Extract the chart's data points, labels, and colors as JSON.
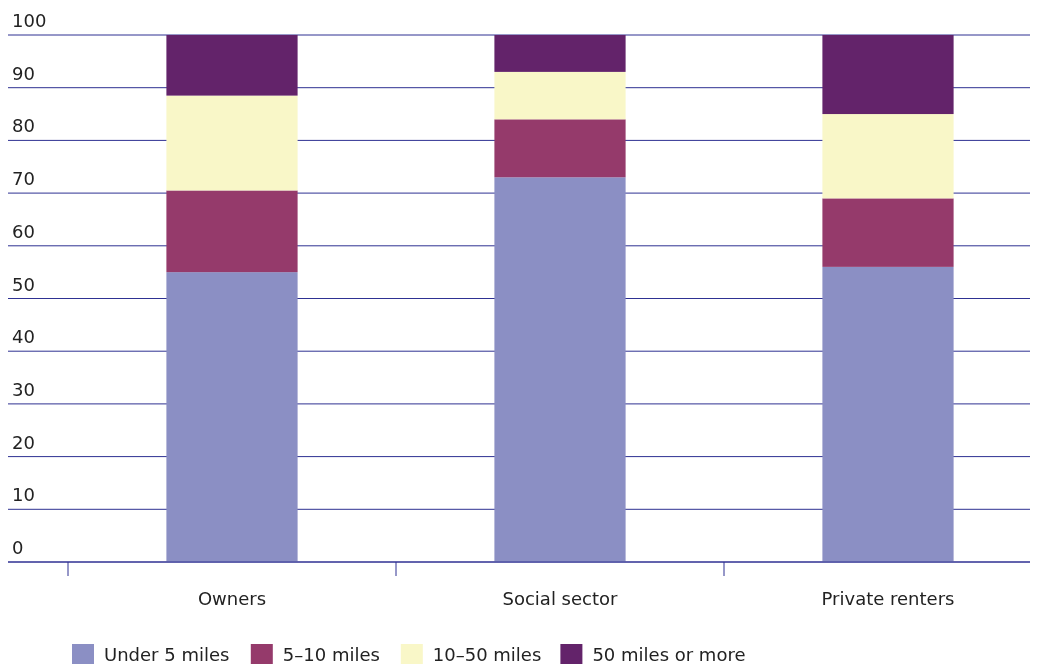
{
  "chart_data": {
    "type": "bar",
    "stacked": true,
    "categories": [
      "Owners",
      "Social sector",
      "Private renters"
    ],
    "series": [
      {
        "name": "Under 5 miles",
        "color": "#8b8fc4",
        "values": [
          55,
          73,
          56
        ]
      },
      {
        "name": "5–10 miles",
        "color": "#953a6b",
        "values": [
          15.5,
          11,
          13
        ]
      },
      {
        "name": "10–50 miles",
        "color": "#f9f7c8",
        "values": [
          18,
          9,
          16
        ]
      },
      {
        "name": "50 miles or more",
        "color": "#63236a",
        "values": [
          11.5,
          7,
          15
        ]
      }
    ],
    "ylim": [
      0,
      100
    ],
    "yticks": [
      0,
      10,
      20,
      30,
      40,
      50,
      60,
      70,
      80,
      90,
      100
    ],
    "grid": "y",
    "legend": "bottom"
  }
}
